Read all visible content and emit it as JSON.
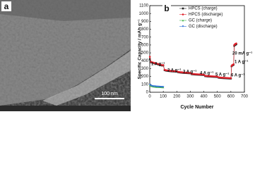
{
  "panel_a": {
    "label": "a",
    "scale_bar": "100 nm"
  },
  "chart_data": {
    "type": "line",
    "panel_label": "b",
    "x_label": "Cycle Number",
    "y_label": "Specific Capacity / mAh g⁻¹",
    "xlim": [
      0,
      700
    ],
    "xticks": [
      0,
      100,
      200,
      300,
      400,
      500,
      600,
      700
    ],
    "ylim": [
      0,
      1100
    ],
    "yticks": [
      0,
      100,
      200,
      300,
      400,
      500,
      600,
      700,
      800,
      900,
      1000,
      1100
    ],
    "annotations": [
      "1 A g⁻¹",
      "2 A g⁻¹",
      "3 A g⁻¹",
      "4 A g⁻¹",
      "5 A g⁻¹",
      "6 A g⁻¹",
      "1 A g⁻¹",
      "20 mA g⁻¹"
    ],
    "series": [
      {
        "name": "HPCS (charge)",
        "color": "#222222",
        "marker": "square",
        "x": [
          1,
          10,
          20,
          30,
          40,
          50,
          60,
          70,
          80,
          90,
          100,
          110,
          120,
          130,
          140,
          150,
          160,
          170,
          180,
          190,
          200,
          210,
          220,
          230,
          240,
          250,
          260,
          270,
          280,
          290,
          300,
          310,
          320,
          330,
          340,
          350,
          360,
          370,
          380,
          390,
          400,
          410,
          420,
          430,
          440,
          450,
          460,
          470,
          480,
          490,
          500,
          510,
          520,
          530,
          540,
          550,
          560,
          570,
          580,
          590,
          600,
          605,
          610,
          615,
          620,
          625,
          630,
          635,
          640
        ],
        "values": [
          420,
          380,
          375,
          370,
          365,
          360,
          355,
          350,
          345,
          340,
          340,
          280,
          275,
          272,
          270,
          268,
          266,
          265,
          264,
          263,
          262,
          255,
          252,
          250,
          248,
          246,
          245,
          244,
          243,
          242,
          241,
          230,
          228,
          226,
          225,
          224,
          223,
          222,
          221,
          220,
          219,
          205,
          203,
          201,
          200,
          199,
          198,
          197,
          196,
          195,
          194,
          185,
          183,
          181,
          180,
          179,
          178,
          177,
          176,
          175,
          174,
          330,
          340,
          345,
          350,
          590,
          600,
          605,
          610
        ]
      },
      {
        "name": "HPCS (discharge)",
        "color": "#e0202a",
        "marker": "circle",
        "x": [
          1,
          10,
          20,
          30,
          40,
          50,
          60,
          70,
          80,
          90,
          100,
          110,
          120,
          130,
          140,
          150,
          160,
          170,
          180,
          190,
          200,
          210,
          220,
          230,
          240,
          250,
          260,
          270,
          280,
          290,
          300,
          310,
          320,
          330,
          340,
          350,
          360,
          370,
          380,
          390,
          400,
          410,
          420,
          430,
          440,
          450,
          460,
          470,
          480,
          490,
          500,
          510,
          520,
          530,
          540,
          550,
          560,
          570,
          580,
          590,
          600,
          605,
          610,
          615,
          620,
          625,
          630,
          635,
          640
        ],
        "values": [
          450,
          385,
          380,
          375,
          370,
          365,
          360,
          355,
          350,
          345,
          345,
          285,
          280,
          277,
          275,
          273,
          271,
          270,
          269,
          268,
          267,
          260,
          257,
          255,
          253,
          251,
          250,
          249,
          248,
          247,
          246,
          235,
          233,
          231,
          230,
          229,
          228,
          227,
          226,
          225,
          224,
          210,
          208,
          206,
          205,
          204,
          203,
          202,
          201,
          200,
          199,
          190,
          188,
          186,
          185,
          184,
          183,
          182,
          181,
          180,
          179,
          335,
          345,
          350,
          355,
          600,
          610,
          615,
          620
        ]
      },
      {
        "name": "GC (charge)",
        "color": "#3cb043",
        "marker": "triangle",
        "x": [
          1,
          10,
          20,
          30,
          40,
          50,
          60,
          70,
          80,
          90,
          100
        ],
        "values": [
          90,
          80,
          75,
          72,
          70,
          68,
          67,
          66,
          65,
          64,
          63
        ]
      },
      {
        "name": "GC (discharge)",
        "color": "#2a6fd6",
        "marker": "triangle-down",
        "x": [
          1,
          10,
          20,
          30,
          40,
          50,
          60,
          70,
          80,
          90,
          100
        ],
        "values": [
          95,
          84,
          79,
          76,
          74,
          72,
          71,
          70,
          69,
          68,
          67
        ]
      }
    ]
  }
}
